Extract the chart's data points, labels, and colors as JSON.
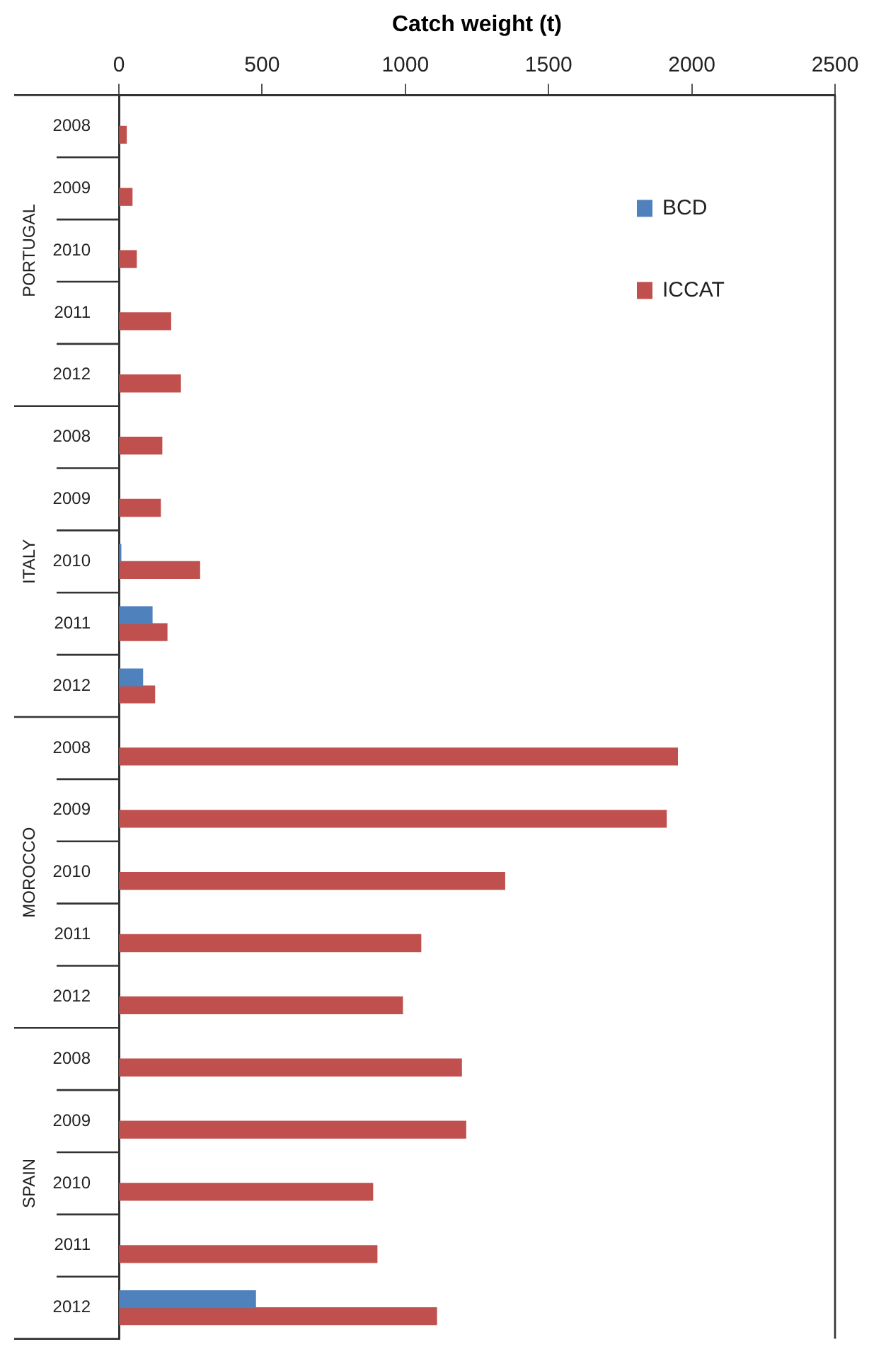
{
  "chart_data": {
    "type": "bar",
    "orientation": "horizontal",
    "xlabel": "Catch weight (t)",
    "categories": [
      "2008",
      "2009",
      "2010",
      "2011",
      "2012",
      "2008",
      "2009",
      "2010",
      "2011",
      "2012",
      "2008",
      "2009",
      "2010",
      "2011",
      "2012",
      "2008",
      "2009",
      "2010",
      "2011",
      "2012"
    ],
    "annotations": [
      "PORTUGAL",
      "ITALY",
      "MOROCCO",
      "SPAIN"
    ],
    "series": [
      {
        "name": "BCD",
        "color": "#4f81bd",
        "values": [
          null,
          null,
          null,
          null,
          null,
          null,
          null,
          7,
          116,
          83,
          null,
          null,
          null,
          null,
          null,
          null,
          null,
          null,
          null,
          477
        ]
      },
      {
        "name": "ICCAT",
        "color": "#c0504d",
        "values": [
          26,
          46,
          61,
          181,
          215,
          150,
          145,
          282,
          168,
          125,
          1950,
          1911,
          1347,
          1054,
          990,
          1196,
          1211,
          886,
          901,
          1109
        ]
      }
    ],
    "xlim": [
      0,
      2500
    ],
    "xticks": [
      0,
      500,
      1000,
      1500,
      2000,
      2500
    ],
    "grid": false,
    "legend": "top right"
  }
}
